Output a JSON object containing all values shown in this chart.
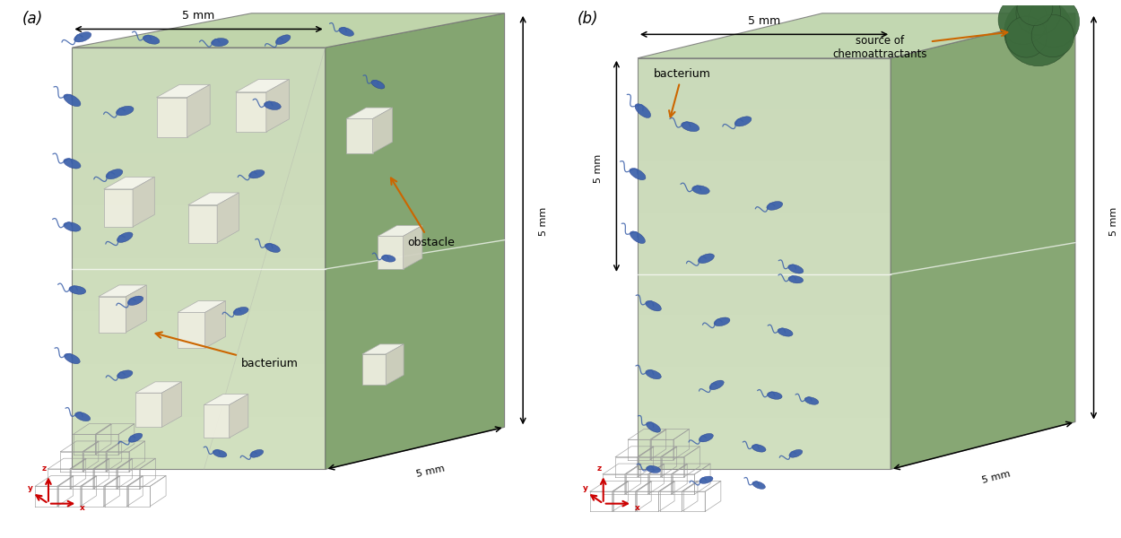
{
  "fig_width": 12.5,
  "fig_height": 6.0,
  "bg_color": "#ffffff",
  "panel_a_label": "(a)",
  "panel_b_label": "(b)",
  "dim_label": "5 mm",
  "obstacle_label": "obstacle",
  "bacterium_label": "bacterium",
  "chemoattractant_label": "source of\nchemoattractants",
  "bacterium_body": "#3a5faa",
  "bacterium_tail": "#3a5faa",
  "annotation_color": "#cc6600",
  "arrow_color": "#cc6600",
  "axis_red": "#cc0000",
  "cloud_color": "#3d6b3d",
  "box_front_light": "#ccddb8",
  "box_front_dark": "#8aaa78",
  "box_right_color": "#7a9e65",
  "box_top_color": "#b8d0a0",
  "obstacle_front": "#ededdf",
  "obstacle_top": "#f5f5ec",
  "obstacle_right": "#d0d0c0"
}
